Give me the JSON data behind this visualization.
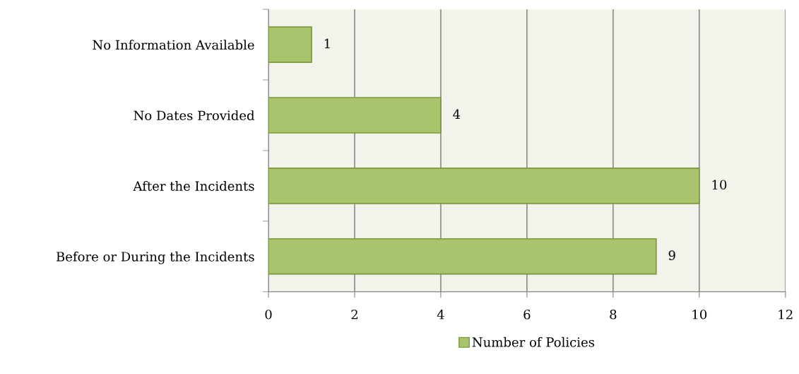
{
  "chart_data": {
    "type": "bar",
    "orientation": "horizontal",
    "categories": [
      "No Information Available",
      "No Dates Provided",
      "After the Incidents",
      "Before or During the Incidents"
    ],
    "series": [
      {
        "name": "Number of Policies",
        "color": "#a9c46c",
        "values": [
          1,
          4,
          10,
          9
        ]
      }
    ],
    "xlim": [
      0,
      12
    ],
    "xticks": [
      0,
      2,
      4,
      6,
      8,
      10,
      12
    ],
    "grid": "x",
    "legend": "bottom",
    "data_labels": true
  }
}
